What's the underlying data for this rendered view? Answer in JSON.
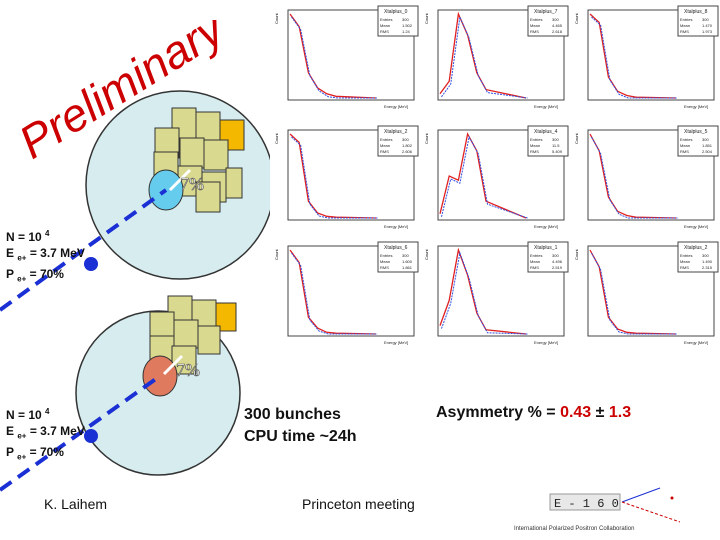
{
  "watermark": "Preliminary",
  "watermark_color": "#cc0000",
  "scenario_top": {
    "n_line": "N = 10",
    "n_exp": "4",
    "e_line_a": "E",
    "e_sub": "e+",
    "e_line_b": " = 3.7 MeV",
    "p_line_a": "P",
    "p_sub": "e+",
    "p_line_b": " = 70%",
    "percent": "7%",
    "spot_color": "#66ccee"
  },
  "scenario_bottom": {
    "n_line": "N = 10",
    "n_exp": "4",
    "e_line_a": "E",
    "e_sub": "e+",
    "e_line_b": " = 3.7 MeV",
    "p_line_a": "P",
    "p_sub": "e+",
    "p_line_b": " = 70%",
    "percent": "7%",
    "spot_color": "#e07a5f"
  },
  "bunches": {
    "line1": "300 bunches",
    "line2": "CPU time ~24h"
  },
  "asymmetry": {
    "label": "Asymmetry % = ",
    "value": "0.43",
    "pm": "±",
    "error": "1.3",
    "value_color": "#cc0000"
  },
  "footer": {
    "author": "K. Laihem",
    "meeting": "Princeton meeting"
  },
  "logo": {
    "text": "E - 1 6 0",
    "caption": "International Polarized Positron Collaboration"
  },
  "plots": [
    {
      "title": "Xtalplus_0",
      "entries_label": "Entries",
      "entries": "300",
      "mean_label": "Mean",
      "mean": "1.502",
      "rms_label": "RMS",
      "rms": "1.24",
      "xlabel": "Energy [MeV]",
      "ylabel": "Count"
    },
    {
      "title": "Xtalplus_7",
      "entries_label": "Entries",
      "entries": "300",
      "mean_label": "Mean",
      "mean": "4.465",
      "rms_label": "RMS",
      "rms": "2.618",
      "xlabel": "Energy [MeV]",
      "ylabel": "Count"
    },
    {
      "title": "Xtalplus_8",
      "entries_label": "Entries",
      "entries": "300",
      "mean_label": "Mean",
      "mean": "1.470",
      "rms_label": "RMS",
      "rms": "1.973",
      "xlabel": "Energy [MeV]",
      "ylabel": "Count"
    },
    {
      "title": "Xtalplus_2",
      "entries_label": "Entries",
      "entries": "300",
      "mean_label": "Mean",
      "mean": "1.802",
      "rms_label": "RMS",
      "rms": "2.606",
      "xlabel": "Energy [MeV]",
      "ylabel": "Count"
    },
    {
      "title": "Xtalplus_4",
      "entries_label": "Entries",
      "entries": "300",
      "mean_label": "Mean",
      "mean": "11.5",
      "rms_label": "RMS",
      "rms": "5.409",
      "xlabel": "Energy [MeV]",
      "ylabel": "Count"
    },
    {
      "title": "Xtalplus_5",
      "entries_label": "Entries",
      "entries": "300",
      "mean_label": "Mean",
      "mean": "1.851",
      "rms_label": "RMS",
      "rms": "2.504",
      "xlabel": "Energy [MeV]",
      "ylabel": "Count"
    },
    {
      "title": "Xtalplus_6",
      "entries_label": "Entries",
      "entries": "300",
      "mean_label": "Mean",
      "mean": "1.600",
      "rms_label": "RMS",
      "rms": "1.861",
      "xlabel": "Energy [MeV]",
      "ylabel": "Count"
    },
    {
      "title": "Xtalplus_1",
      "entries_label": "Entries",
      "entries": "300",
      "mean_label": "Mean",
      "mean": "4.496",
      "rms_label": "RMS",
      "rms": "2.519",
      "xlabel": "Energy [MeV]",
      "ylabel": "Count"
    },
    {
      "title": "Xtalplus_2",
      "entries_label": "Entries",
      "entries": "300",
      "mean_label": "Mean",
      "mean": "1.490",
      "rms_label": "RMS",
      "rms": "2.315",
      "xlabel": "Energy [MeV]",
      "ylabel": "Count"
    }
  ]
}
